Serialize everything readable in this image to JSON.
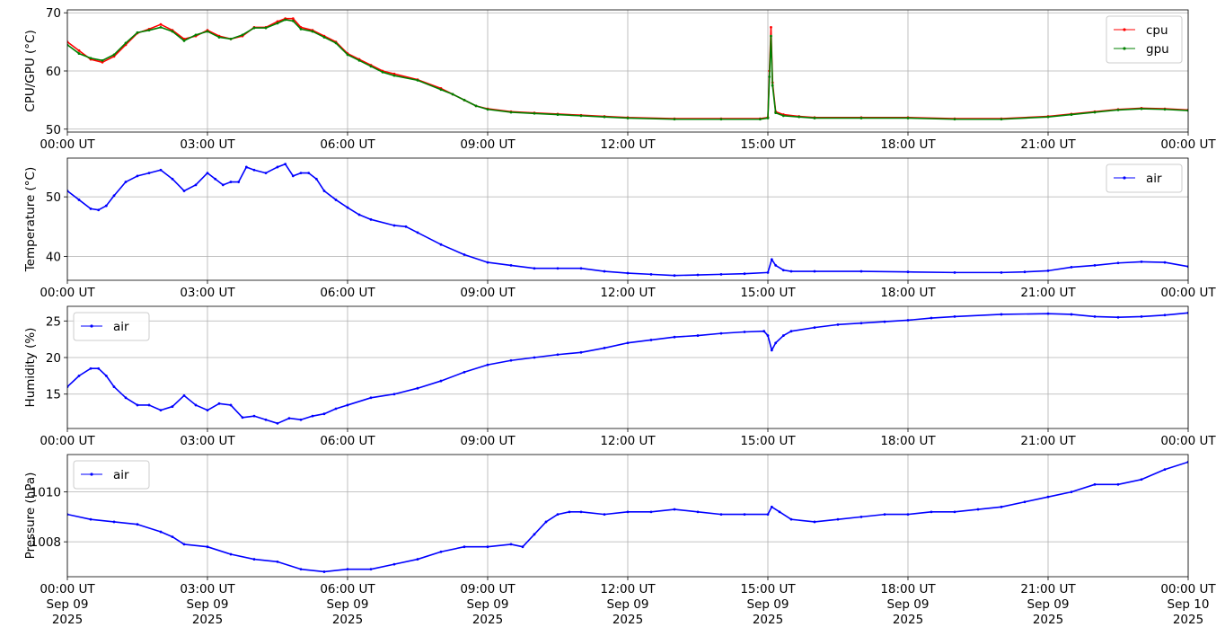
{
  "chart_data": [
    {
      "type": "line",
      "ylabel": "CPU/GPU (°C)",
      "ylim": [
        49.5,
        70.5
      ],
      "yticks": [
        50,
        60,
        70
      ],
      "xlim": [
        "2025-09-09T00:00Z",
        "2025-09-10T00:00Z"
      ],
      "xtick_labels": [
        [
          "00:00 UT"
        ],
        [
          "03:00 UT"
        ],
        [
          "06:00 UT"
        ],
        [
          "09:00 UT"
        ],
        [
          "12:00 UT"
        ],
        [
          "15:00 UT"
        ],
        [
          "18:00 UT"
        ],
        [
          "21:00 UT"
        ],
        [
          "00:00 UT"
        ]
      ],
      "grid": true,
      "legend_position": "upper-right",
      "series": [
        {
          "name": "cpu",
          "color": "#ff0000",
          "x": [
            "00:00",
            "00:15",
            "00:30",
            "00:45",
            "01:00",
            "01:15",
            "01:30",
            "01:45",
            "02:00",
            "02:15",
            "02:30",
            "02:45",
            "03:00",
            "03:15",
            "03:30",
            "03:45",
            "04:00",
            "04:15",
            "04:30",
            "04:40",
            "04:50",
            "05:00",
            "05:15",
            "05:30",
            "05:45",
            "06:00",
            "06:15",
            "06:30",
            "06:45",
            "07:00",
            "07:30",
            "08:00",
            "08:15",
            "08:30",
            "08:45",
            "09:00",
            "09:30",
            "10:00",
            "10:30",
            "11:00",
            "11:30",
            "12:00",
            "13:00",
            "14:00",
            "14:50",
            "15:00",
            "15:02",
            "15:04",
            "15:06",
            "15:10",
            "15:20",
            "15:40",
            "16:00",
            "17:00",
            "18:00",
            "19:00",
            "20:00",
            "21:00",
            "21:30",
            "22:00",
            "22:30",
            "23:00",
            "23:30",
            "24:00"
          ],
          "y": [
            65,
            63.5,
            62,
            61.5,
            62.5,
            64.5,
            66.5,
            67.2,
            68,
            67,
            65.5,
            66,
            67,
            66,
            65.5,
            66,
            67.5,
            67.5,
            68.5,
            69,
            69,
            67.5,
            67,
            66,
            65,
            63,
            62,
            61,
            60,
            59.5,
            58.5,
            57,
            56,
            55,
            54,
            53.5,
            53,
            52.8,
            52.6,
            52.4,
            52.2,
            52,
            51.8,
            51.8,
            51.8,
            52,
            60,
            67.5,
            58,
            53,
            52.5,
            52.2,
            52,
            52,
            52,
            51.8,
            51.8,
            52.2,
            52.6,
            53,
            53.4,
            53.6,
            53.5,
            53.3
          ]
        },
        {
          "name": "gpu",
          "color": "#008000",
          "x": [
            "00:00",
            "00:15",
            "00:30",
            "00:45",
            "01:00",
            "01:15",
            "01:30",
            "01:45",
            "02:00",
            "02:15",
            "02:30",
            "02:45",
            "03:00",
            "03:15",
            "03:30",
            "03:45",
            "04:00",
            "04:15",
            "04:30",
            "04:40",
            "04:50",
            "05:00",
            "05:15",
            "05:30",
            "05:45",
            "06:00",
            "06:15",
            "06:30",
            "06:45",
            "07:00",
            "07:30",
            "08:00",
            "08:15",
            "08:30",
            "08:45",
            "09:00",
            "09:30",
            "10:00",
            "10:30",
            "11:00",
            "11:30",
            "12:00",
            "13:00",
            "14:00",
            "14:50",
            "15:00",
            "15:02",
            "15:04",
            "15:06",
            "15:10",
            "15:20",
            "15:40",
            "16:00",
            "17:00",
            "18:00",
            "19:00",
            "20:00",
            "21:00",
            "21:30",
            "22:00",
            "22:30",
            "23:00",
            "23:30",
            "24:00"
          ],
          "y": [
            64.5,
            63,
            62.2,
            61.8,
            62.8,
            64.8,
            66.6,
            67,
            67.5,
            66.8,
            65.2,
            66.2,
            66.8,
            65.8,
            65.5,
            66.2,
            67.4,
            67.4,
            68.2,
            68.8,
            68.6,
            67.2,
            66.8,
            65.8,
            64.8,
            62.8,
            61.8,
            60.8,
            59.8,
            59.2,
            58.4,
            56.8,
            56,
            55,
            54,
            53.4,
            52.9,
            52.7,
            52.5,
            52.3,
            52.1,
            51.9,
            51.7,
            51.7,
            51.7,
            51.9,
            59,
            66,
            57.5,
            52.8,
            52.3,
            52.1,
            51.9,
            51.9,
            51.9,
            51.7,
            51.7,
            52.1,
            52.5,
            52.9,
            53.3,
            53.5,
            53.4,
            53.2
          ]
        }
      ]
    },
    {
      "type": "line",
      "ylabel": "Temperature (°C)",
      "ylim": [
        36,
        56.5
      ],
      "yticks": [
        40,
        50
      ],
      "xlim": [
        "2025-09-09T00:00Z",
        "2025-09-10T00:00Z"
      ],
      "xtick_labels": [
        [
          "00:00 UT"
        ],
        [
          "03:00 UT"
        ],
        [
          "06:00 UT"
        ],
        [
          "09:00 UT"
        ],
        [
          "12:00 UT"
        ],
        [
          "15:00 UT"
        ],
        [
          "18:00 UT"
        ],
        [
          "21:00 UT"
        ],
        [
          "00:00 UT"
        ]
      ],
      "grid": true,
      "legend_position": "upper-right",
      "series": [
        {
          "name": "air",
          "color": "#0000ff",
          "x": [
            "00:00",
            "00:15",
            "00:30",
            "00:40",
            "00:50",
            "01:00",
            "01:15",
            "01:30",
            "01:45",
            "02:00",
            "02:15",
            "02:30",
            "02:45",
            "03:00",
            "03:10",
            "03:20",
            "03:30",
            "03:40",
            "03:50",
            "04:00",
            "04:15",
            "04:30",
            "04:40",
            "04:50",
            "05:00",
            "05:10",
            "05:20",
            "05:30",
            "05:45",
            "06:00",
            "06:15",
            "06:30",
            "07:00",
            "07:15",
            "07:30",
            "08:00",
            "08:30",
            "09:00",
            "09:30",
            "10:00",
            "10:30",
            "11:00",
            "11:30",
            "12:00",
            "12:30",
            "13:00",
            "13:30",
            "14:00",
            "14:30",
            "15:00",
            "15:05",
            "15:10",
            "15:20",
            "15:30",
            "16:00",
            "17:00",
            "18:00",
            "19:00",
            "20:00",
            "20:30",
            "21:00",
            "21:30",
            "22:00",
            "22:30",
            "23:00",
            "23:30",
            "24:00"
          ],
          "y": [
            51,
            49.5,
            48,
            47.8,
            48.5,
            50.2,
            52.5,
            53.5,
            54,
            54.5,
            53,
            51,
            52,
            54,
            53,
            52,
            52.5,
            52.5,
            55,
            54.5,
            54,
            55,
            55.5,
            53.5,
            54,
            54,
            53,
            51,
            49.5,
            48.2,
            47,
            46.2,
            45.2,
            45,
            44,
            42,
            40.3,
            39,
            38.5,
            38,
            38,
            38,
            37.5,
            37.2,
            37,
            36.8,
            36.9,
            37,
            37.1,
            37.3,
            39.5,
            38.5,
            37.7,
            37.5,
            37.5,
            37.5,
            37.4,
            37.3,
            37.3,
            37.4,
            37.6,
            38.2,
            38.5,
            38.9,
            39.1,
            39,
            38.3
          ]
        }
      ]
    },
    {
      "type": "line",
      "ylabel": "Humidity (%)",
      "ylim": [
        10.3,
        27
      ],
      "yticks": [
        15,
        20,
        25
      ],
      "xlim": [
        "2025-09-09T00:00Z",
        "2025-09-10T00:00Z"
      ],
      "xtick_labels": [
        [
          "00:00 UT"
        ],
        [
          "03:00 UT"
        ],
        [
          "06:00 UT"
        ],
        [
          "09:00 UT"
        ],
        [
          "12:00 UT"
        ],
        [
          "15:00 UT"
        ],
        [
          "18:00 UT"
        ],
        [
          "21:00 UT"
        ],
        [
          "00:00 UT"
        ]
      ],
      "grid": true,
      "legend_position": "upper-left",
      "series": [
        {
          "name": "air",
          "color": "#0000ff",
          "x": [
            "00:00",
            "00:15",
            "00:30",
            "00:40",
            "00:50",
            "01:00",
            "01:15",
            "01:30",
            "01:45",
            "02:00",
            "02:15",
            "02:30",
            "02:45",
            "03:00",
            "03:15",
            "03:30",
            "03:45",
            "04:00",
            "04:15",
            "04:30",
            "04:45",
            "05:00",
            "05:15",
            "05:30",
            "05:45",
            "06:00",
            "06:30",
            "07:00",
            "07:30",
            "08:00",
            "08:30",
            "09:00",
            "09:30",
            "10:00",
            "10:30",
            "11:00",
            "11:30",
            "12:00",
            "12:30",
            "13:00",
            "13:30",
            "14:00",
            "14:30",
            "14:55",
            "15:00",
            "15:05",
            "15:10",
            "15:20",
            "15:30",
            "16:00",
            "16:30",
            "17:00",
            "17:30",
            "18:00",
            "18:30",
            "19:00",
            "20:00",
            "21:00",
            "21:30",
            "22:00",
            "22:30",
            "23:00",
            "23:30",
            "24:00"
          ],
          "y": [
            16,
            17.5,
            18.5,
            18.5,
            17.5,
            16,
            14.5,
            13.5,
            13.5,
            12.8,
            13.3,
            14.8,
            13.5,
            12.8,
            13.7,
            13.5,
            11.8,
            12,
            11.5,
            11,
            11.7,
            11.5,
            12,
            12.3,
            13,
            13.5,
            14.5,
            15,
            15.8,
            16.8,
            18,
            19,
            19.6,
            20,
            20.4,
            20.7,
            21.3,
            22,
            22.4,
            22.8,
            23,
            23.3,
            23.5,
            23.6,
            23,
            21,
            22,
            23,
            23.6,
            24.1,
            24.5,
            24.7,
            24.9,
            25.1,
            25.4,
            25.6,
            25.9,
            26,
            25.9,
            25.6,
            25.5,
            25.6,
            25.8,
            26.1
          ]
        }
      ]
    },
    {
      "type": "line",
      "ylabel": "Pressure (hPa)",
      "ylim": [
        1006.6,
        1011.5
      ],
      "yticks": [
        1008,
        1010
      ],
      "xlim": [
        "2025-09-09T00:00Z",
        "2025-09-10T00:00Z"
      ],
      "xtick_labels": [
        [
          "00:00 UT",
          "Sep 09",
          "2025"
        ],
        [
          "03:00 UT",
          "Sep 09",
          "2025"
        ],
        [
          "06:00 UT",
          "Sep 09",
          "2025"
        ],
        [
          "09:00 UT",
          "Sep 09",
          "2025"
        ],
        [
          "12:00 UT",
          "Sep 09",
          "2025"
        ],
        [
          "15:00 UT",
          "Sep 09",
          "2025"
        ],
        [
          "18:00 UT",
          "Sep 09",
          "2025"
        ],
        [
          "21:00 UT",
          "Sep 09",
          "2025"
        ],
        [
          "00:00 UT",
          "Sep 10",
          "2025"
        ]
      ],
      "grid": true,
      "legend_position": "upper-left",
      "series": [
        {
          "name": "air",
          "color": "#0000ff",
          "x": [
            "00:00",
            "00:30",
            "01:00",
            "01:30",
            "02:00",
            "02:15",
            "02:30",
            "03:00",
            "03:30",
            "04:00",
            "04:30",
            "05:00",
            "05:30",
            "06:00",
            "06:30",
            "07:00",
            "07:30",
            "08:00",
            "08:30",
            "09:00",
            "09:30",
            "09:45",
            "10:00",
            "10:15",
            "10:30",
            "10:45",
            "11:00",
            "11:30",
            "12:00",
            "12:30",
            "13:00",
            "13:30",
            "14:00",
            "14:30",
            "15:00",
            "15:05",
            "15:15",
            "15:30",
            "16:00",
            "16:30",
            "17:00",
            "17:30",
            "18:00",
            "18:30",
            "19:00",
            "19:30",
            "20:00",
            "20:30",
            "21:00",
            "21:30",
            "22:00",
            "22:30",
            "23:00",
            "23:30",
            "24:00"
          ],
          "y": [
            1009.1,
            1008.9,
            1008.8,
            1008.7,
            1008.4,
            1008.2,
            1007.9,
            1007.8,
            1007.5,
            1007.3,
            1007.2,
            1006.9,
            1006.8,
            1006.9,
            1006.9,
            1007.1,
            1007.3,
            1007.6,
            1007.8,
            1007.8,
            1007.9,
            1007.8,
            1008.3,
            1008.8,
            1009.1,
            1009.2,
            1009.2,
            1009.1,
            1009.2,
            1009.2,
            1009.3,
            1009.2,
            1009.1,
            1009.1,
            1009.1,
            1009.4,
            1009.2,
            1008.9,
            1008.8,
            1008.9,
            1009,
            1009.1,
            1009.1,
            1009.2,
            1009.2,
            1009.3,
            1009.4,
            1009.6,
            1009.8,
            1010,
            1010.3,
            1010.3,
            1010.5,
            1010.9,
            1011.2
          ]
        }
      ]
    }
  ]
}
